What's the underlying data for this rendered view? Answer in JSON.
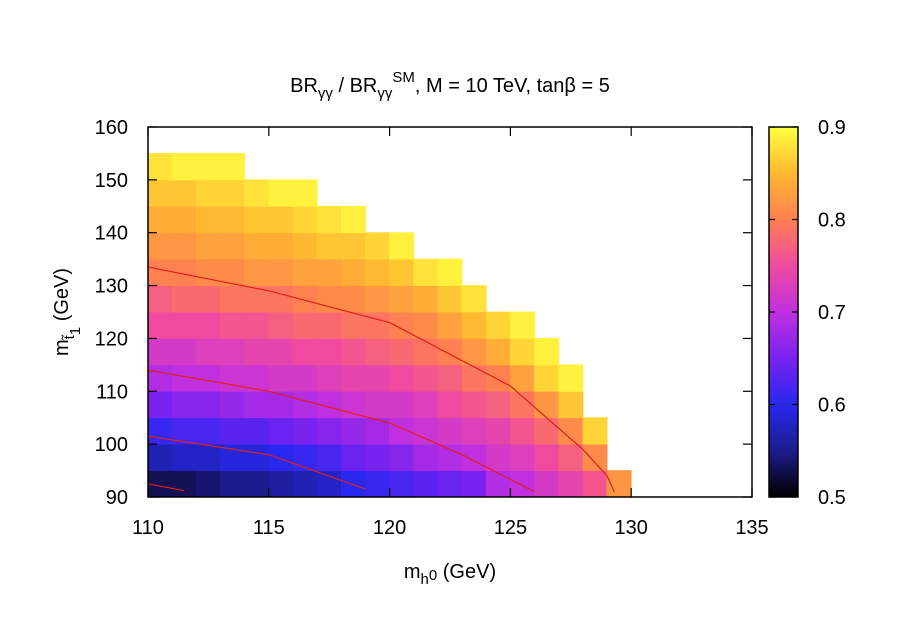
{
  "chart_data": {
    "type": "heatmap",
    "title": [
      "BR",
      "γγ",
      " / BR",
      "γγ",
      "SM",
      ",  M = 10 TeV,  tanβ = 5"
    ],
    "x_label": [
      "m",
      "h",
      "0",
      " (GeV)"
    ],
    "y_label": [
      "m",
      "t̃",
      "1",
      " (GeV)"
    ],
    "xlim": [
      110,
      135
    ],
    "xticks": [
      110,
      115,
      120,
      125,
      130,
      135
    ],
    "ylim": [
      90,
      160
    ],
    "yticks": [
      90,
      100,
      110,
      120,
      130,
      140,
      150,
      160
    ],
    "zlim": [
      0.5,
      0.9
    ],
    "zticks": [
      0.5,
      0.6,
      0.7,
      0.8,
      0.9
    ],
    "palette": [
      "#000000",
      "#1c1c8c",
      "#2828f0",
      "#7a22f0",
      "#c030e0",
      "#f04aa0",
      "#ff8050",
      "#ffb830",
      "#ffff40"
    ],
    "xbins": [
      110,
      111,
      112,
      113,
      114,
      115,
      116,
      117,
      118,
      119,
      120,
      121,
      122,
      123,
      124,
      125,
      126,
      127,
      128,
      129,
      130
    ],
    "ybins": [
      90,
      95,
      100,
      105,
      110,
      115,
      120,
      125,
      130,
      135,
      140,
      145,
      150,
      155
    ],
    "values": [
      [
        0.53,
        0.53,
        0.54,
        0.55,
        0.55,
        0.56,
        0.57,
        0.58,
        0.6,
        0.61,
        0.62,
        0.63,
        0.64,
        0.65,
        0.69,
        0.7,
        0.72,
        0.74,
        0.76,
        0.82
      ],
      [
        0.57,
        0.58,
        0.58,
        0.59,
        0.59,
        0.6,
        0.61,
        0.62,
        0.64,
        0.65,
        0.66,
        0.68,
        0.69,
        0.7,
        0.72,
        0.73,
        0.75,
        0.77,
        0.81,
        null
      ],
      [
        0.61,
        0.62,
        0.62,
        0.63,
        0.63,
        0.64,
        0.65,
        0.66,
        0.67,
        0.68,
        0.7,
        0.71,
        0.72,
        0.73,
        0.74,
        0.76,
        0.78,
        0.81,
        0.87,
        null
      ],
      [
        0.65,
        0.66,
        0.66,
        0.67,
        0.68,
        0.68,
        0.69,
        0.7,
        0.71,
        0.72,
        0.72,
        0.73,
        0.75,
        0.76,
        0.77,
        0.79,
        0.82,
        0.86,
        null,
        null
      ],
      [
        0.69,
        0.7,
        0.7,
        0.71,
        0.71,
        0.72,
        0.72,
        0.73,
        0.74,
        0.74,
        0.75,
        0.76,
        0.77,
        0.79,
        0.8,
        0.83,
        0.87,
        0.89,
        null,
        null
      ],
      [
        0.72,
        0.72,
        0.73,
        0.73,
        0.74,
        0.74,
        0.75,
        0.75,
        0.76,
        0.77,
        0.78,
        0.79,
        0.8,
        0.82,
        0.84,
        0.87,
        0.89,
        null,
        null,
        null
      ],
      [
        0.75,
        0.75,
        0.75,
        0.76,
        0.76,
        0.77,
        0.78,
        0.78,
        0.79,
        0.79,
        0.8,
        0.81,
        0.83,
        0.85,
        0.87,
        0.89,
        null,
        null,
        null,
        null
      ],
      [
        0.77,
        0.78,
        0.78,
        0.79,
        0.79,
        0.79,
        0.8,
        0.81,
        0.81,
        0.82,
        0.83,
        0.84,
        0.86,
        0.88,
        null,
        null,
        null,
        null,
        null,
        null
      ],
      [
        0.8,
        0.8,
        0.81,
        0.81,
        0.82,
        0.82,
        0.83,
        0.83,
        0.84,
        0.85,
        0.86,
        0.88,
        0.89,
        null,
        null,
        null,
        null,
        null,
        null,
        null
      ],
      [
        0.82,
        0.82,
        0.83,
        0.83,
        0.84,
        0.84,
        0.85,
        0.86,
        0.86,
        0.87,
        0.89,
        null,
        null,
        null,
        null,
        null,
        null,
        null,
        null,
        null
      ],
      [
        0.84,
        0.84,
        0.85,
        0.85,
        0.86,
        0.86,
        0.87,
        0.88,
        0.89,
        null,
        null,
        null,
        null,
        null,
        null,
        null,
        null,
        null,
        null,
        null
      ],
      [
        0.86,
        0.86,
        0.87,
        0.87,
        0.88,
        0.89,
        0.89,
        null,
        null,
        null,
        null,
        null,
        null,
        null,
        null,
        null,
        null,
        null,
        null,
        null
      ],
      [
        0.88,
        0.89,
        0.89,
        0.89,
        null,
        null,
        null,
        null,
        null,
        null,
        null,
        null,
        null,
        null,
        null,
        null,
        null,
        null,
        null,
        null
      ]
    ],
    "contour_color": "#e0201a",
    "contours": [
      {
        "x": [
          110,
          115,
          120,
          125,
          127,
          128,
          129,
          129.3
        ],
        "y": [
          133.5,
          129,
          123,
          111,
          103,
          99,
          94,
          91
        ]
      },
      {
        "x": [
          110,
          115,
          120,
          123,
          126
        ],
        "y": [
          114,
          110,
          104,
          98,
          91
        ]
      },
      {
        "x": [
          110,
          115,
          119
        ],
        "y": [
          101.5,
          98,
          91.5
        ]
      },
      {
        "x": [
          110,
          111.5
        ],
        "y": [
          92.5,
          91.2
        ]
      }
    ]
  }
}
